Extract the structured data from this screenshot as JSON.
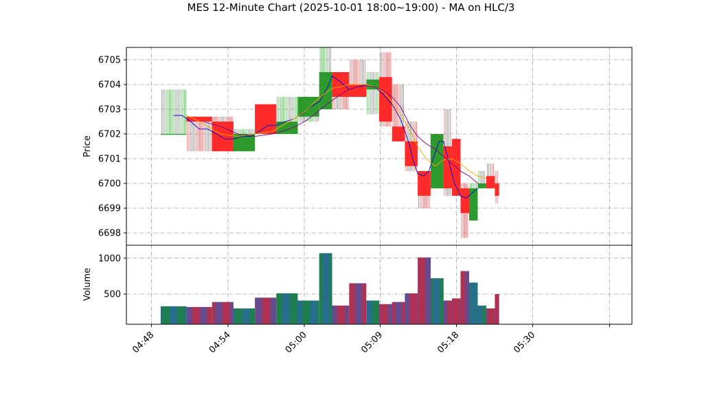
{
  "chart_data": {
    "type": "candlestick",
    "title": "MES 12-Minute Chart (2025-10-01 18:00~19:00) - MA on HLC/3",
    "price_panel": {
      "ylabel": "Price",
      "ylim": [
        6697.5,
        6705.5
      ],
      "yticks": [
        6698,
        6699,
        6700,
        6701,
        6702,
        6703,
        6704,
        6705
      ],
      "grid": true
    },
    "volume_panel": {
      "ylabel": "Volume",
      "ylim": [
        80,
        1180
      ],
      "yticks": [
        500,
        1000
      ],
      "grid": true
    },
    "xlim": [
      "04:44",
      "05:43"
    ],
    "xticks": [
      "04:48",
      "04:54",
      "05:00",
      "05:09",
      "05:18",
      "05:30",
      ""
    ],
    "bars": [
      {
        "start": "04:48",
        "end": "04:51",
        "open": 6702.0,
        "high": 6703.8,
        "low": 6702.0,
        "close": 6702.0,
        "volume": 330
      },
      {
        "start": "04:51",
        "end": "04:54",
        "open": 6702.7,
        "high": 6702.7,
        "low": 6701.3,
        "close": 6702.5,
        "volume": 320
      },
      {
        "start": "04:54",
        "end": "04:56.5",
        "open": 6702.5,
        "high": 6702.7,
        "low": 6701.3,
        "close": 6701.3,
        "volume": 390
      },
      {
        "start": "04:56.5",
        "end": "04:59",
        "open": 6701.3,
        "high": 6702.2,
        "low": 6701.3,
        "close": 6702.0,
        "volume": 300
      },
      {
        "start": "04:59",
        "end": "05:01.5",
        "open": 6703.2,
        "high": 6703.2,
        "low": 6702.0,
        "close": 6702.0,
        "volume": 450
      },
      {
        "start": "05:01.5",
        "end": "05:04",
        "open": 6702.0,
        "high": 6703.5,
        "low": 6702.0,
        "close": 6702.5,
        "volume": 510
      },
      {
        "start": "05:04",
        "end": "05:06.5",
        "open": 6702.7,
        "high": 6703.5,
        "low": 6702.5,
        "close": 6703.5,
        "volume": 410
      },
      {
        "start": "05:06.5",
        "end": "05:08",
        "open": 6703.0,
        "high": 6705.5,
        "low": 6703.0,
        "close": 6704.5,
        "volume": 1070
      },
      {
        "start": "05:08",
        "end": "05:10",
        "open": 6704.5,
        "high": 6704.5,
        "low": 6703.0,
        "close": 6703.5,
        "volume": 340
      },
      {
        "start": "05:10",
        "end": "05:12",
        "open": 6704.0,
        "high": 6705.0,
        "low": 6703.5,
        "close": 6703.5,
        "volume": 650
      },
      {
        "start": "05:12",
        "end": "05:13.5",
        "open": 6703.8,
        "high": 6704.5,
        "low": 6702.8,
        "close": 6704.2,
        "volume": 410
      },
      {
        "start": "05:13.5",
        "end": "05:15",
        "open": 6704.3,
        "high": 6705.3,
        "low": 6702.3,
        "close": 6702.5,
        "volume": 360
      },
      {
        "start": "05:15",
        "end": "05:16.5",
        "open": 6702.3,
        "high": 6704.0,
        "low": 6701.7,
        "close": 6701.7,
        "volume": 390
      },
      {
        "start": "05:16.5",
        "end": "05:18",
        "open": 6701.7,
        "high": 6702.5,
        "low": 6700.5,
        "close": 6700.7,
        "volume": 510
      },
      {
        "start": "05:18",
        "end": "05:19.5",
        "open": 6700.5,
        "high": 6700.5,
        "low": 6699.0,
        "close": 6699.5,
        "volume": 1010
      },
      {
        "start": "05:19.5",
        "end": "05:21",
        "open": 6699.8,
        "high": 6702.0,
        "low": 6699.8,
        "close": 6702.0,
        "volume": 720
      },
      {
        "start": "05:21",
        "end": "05:22",
        "open": 6701.5,
        "high": 6703.0,
        "low": 6699.5,
        "close": 6699.8,
        "volume": 410
      },
      {
        "start": "05:22",
        "end": "05:23",
        "open": 6701.8,
        "high": 6701.8,
        "low": 6699.5,
        "close": 6699.5,
        "volume": 440
      },
      {
        "start": "05:23",
        "end": "05:24",
        "open": 6699.8,
        "high": 6700.0,
        "low": 6697.8,
        "close": 6698.8,
        "volume": 820
      },
      {
        "start": "05:24",
        "end": "05:25",
        "open": 6698.5,
        "high": 6700.0,
        "low": 6698.5,
        "close": 6699.8,
        "volume": 660
      },
      {
        "start": "05:25",
        "end": "05:26",
        "open": 6699.8,
        "high": 6700.5,
        "low": 6699.8,
        "close": 6700.0,
        "volume": 340
      },
      {
        "start": "05:26",
        "end": "05:27",
        "open": 6700.3,
        "high": 6700.8,
        "low": 6699.8,
        "close": 6699.8,
        "volume": 300
      },
      {
        "start": "05:27",
        "end": "05:27.5",
        "open": 6700.0,
        "high": 6700.5,
        "low": 6699.2,
        "close": 6699.5,
        "volume": 500
      }
    ],
    "series": [
      {
        "color": "#0000cc",
        "points": [
          [
            "04:49.5",
            6702.75
          ],
          [
            "04:50.5",
            6702.75
          ],
          [
            "04:51.5",
            6702.5
          ],
          [
            "04:52.5",
            6702.2
          ],
          [
            "04:53.5",
            6702.2
          ],
          [
            "04:54.5",
            6702.0
          ],
          [
            "04:55.5",
            6701.8
          ],
          [
            "04:56.5",
            6701.8
          ],
          [
            "04:57.5",
            6701.9
          ],
          [
            "04:58.5",
            6701.9
          ],
          [
            "04:59.5",
            6702.1
          ],
          [
            "05:00.5",
            6702.35
          ],
          [
            "05:01.5",
            6702.35
          ],
          [
            "05:02.5",
            6702.5
          ],
          [
            "05:03.5",
            6702.6
          ],
          [
            "05:04.5",
            6702.8
          ],
          [
            "05:05.5",
            6703.1
          ],
          [
            "05:06.5",
            6703.3
          ],
          [
            "05:07.5",
            6703.9
          ],
          [
            "05:08",
            6704.35
          ],
          [
            "05:09",
            6704.1
          ],
          [
            "05:10",
            6703.8
          ],
          [
            "05:11",
            6703.9
          ],
          [
            "05:12",
            6704.0
          ],
          [
            "05:13",
            6703.9
          ],
          [
            "05:14",
            6703.6
          ],
          [
            "05:15",
            6703.2
          ],
          [
            "05:16",
            6702.6
          ],
          [
            "05:17",
            6701.6
          ],
          [
            "05:17.5",
            6700.9
          ],
          [
            "05:18",
            6700.4
          ],
          [
            "05:18.7",
            6700.3
          ],
          [
            "05:19.3",
            6700.5
          ],
          [
            "05:20",
            6701.2
          ],
          [
            "05:20.5",
            6701.7
          ],
          [
            "05:21",
            6701.7
          ],
          [
            "05:21.7",
            6700.8
          ],
          [
            "05:22.3",
            6700.0
          ],
          [
            "05:23",
            6699.5
          ],
          [
            "05:23.7",
            6699.4
          ],
          [
            "05:24.3",
            6699.6
          ],
          [
            "05:25",
            6699.8
          ]
        ]
      },
      {
        "color": "#ffa500",
        "points": [
          [
            "04:51",
            6702.75
          ],
          [
            "04:52",
            6702.6
          ],
          [
            "04:53",
            6702.4
          ],
          [
            "04:54",
            6702.2
          ],
          [
            "04:55",
            6702.0
          ],
          [
            "04:56",
            6701.95
          ],
          [
            "04:57",
            6701.9
          ],
          [
            "04:58",
            6701.95
          ],
          [
            "04:59",
            6702.0
          ],
          [
            "05:00",
            6702.05
          ],
          [
            "05:01",
            6702.1
          ],
          [
            "05:02",
            6702.3
          ],
          [
            "05:03",
            6702.5
          ],
          [
            "05:04",
            6702.7
          ],
          [
            "05:05",
            6702.95
          ],
          [
            "05:06",
            6703.3
          ],
          [
            "05:07",
            6703.6
          ],
          [
            "05:08",
            6703.85
          ],
          [
            "05:09",
            6703.9
          ],
          [
            "05:10",
            6704.0
          ],
          [
            "05:11",
            6704.0
          ],
          [
            "05:12",
            6704.0
          ],
          [
            "05:13",
            6703.9
          ],
          [
            "05:14",
            6703.7
          ],
          [
            "05:15",
            6703.3
          ],
          [
            "05:16",
            6702.8
          ],
          [
            "05:17",
            6702.2
          ],
          [
            "05:18",
            6701.5
          ],
          [
            "05:19",
            6701.0
          ],
          [
            "05:20",
            6700.7
          ],
          [
            "05:21",
            6700.95
          ],
          [
            "05:22",
            6701.0
          ],
          [
            "05:23",
            6700.8
          ],
          [
            "05:24",
            6700.5
          ],
          [
            "05:25",
            6700.3
          ],
          [
            "05:26",
            6700.2
          ]
        ]
      },
      {
        "color": "#800080",
        "points": [
          [
            "04:53",
            6702.5
          ],
          [
            "04:54",
            6702.4
          ],
          [
            "04:55",
            6702.3
          ],
          [
            "04:56",
            6702.15
          ],
          [
            "04:57",
            6702.0
          ],
          [
            "04:58",
            6701.95
          ],
          [
            "04:59",
            6701.9
          ],
          [
            "05:00",
            6701.95
          ],
          [
            "05:01",
            6702.0
          ],
          [
            "05:02",
            6702.1
          ],
          [
            "05:03",
            6702.2
          ],
          [
            "05:04",
            6702.35
          ],
          [
            "05:05",
            6702.55
          ],
          [
            "05:06",
            6702.8
          ],
          [
            "05:07",
            6703.1
          ],
          [
            "05:08",
            6703.35
          ],
          [
            "05:09",
            6703.6
          ],
          [
            "05:10",
            6703.8
          ],
          [
            "05:11",
            6703.9
          ],
          [
            "05:12",
            6703.95
          ],
          [
            "05:13",
            6703.9
          ],
          [
            "05:14",
            6703.75
          ],
          [
            "05:15",
            6703.5
          ],
          [
            "05:16",
            6703.1
          ],
          [
            "05:17",
            6702.4
          ],
          [
            "05:18",
            6701.9
          ],
          [
            "05:19",
            6701.6
          ],
          [
            "05:20",
            6701.4
          ],
          [
            "05:21",
            6701.1
          ],
          [
            "05:22",
            6700.8
          ],
          [
            "05:23",
            6700.5
          ],
          [
            "05:24",
            6700.3
          ],
          [
            "05:25",
            6700.0
          ]
        ]
      }
    ]
  }
}
